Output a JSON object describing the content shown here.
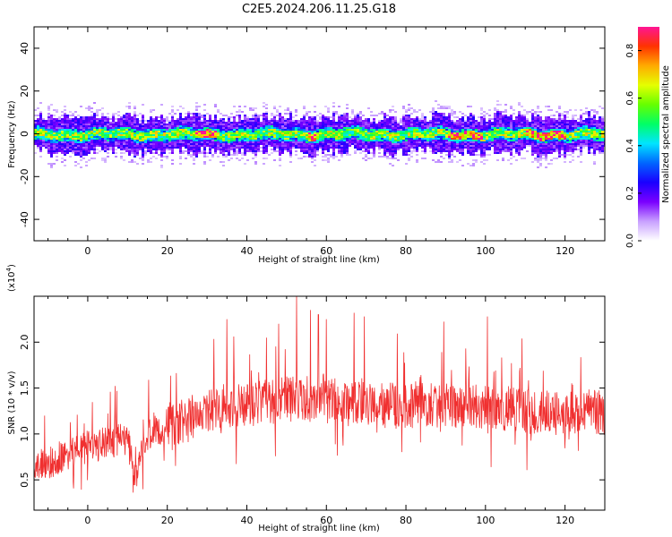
{
  "figure": {
    "title": "C2E5.2024.206.11.25.G18"
  },
  "chart_data": [
    {
      "type": "heatmap",
      "xlabel": "Height of straight line (km)",
      "ylabel": "Frequency (Hz)",
      "xlim": [
        -13.5,
        130
      ],
      "ylim": [
        -50,
        50
      ],
      "x_ticks": [
        0,
        20,
        40,
        60,
        80,
        100,
        120
      ],
      "y_ticks": [
        -40,
        -20,
        0,
        20,
        40
      ],
      "colorbar": {
        "label": "Normalized spectral amplitude",
        "range": [
          0,
          0.9
        ],
        "ticks": [
          0.0,
          0.2,
          0.4,
          0.6,
          0.8
        ],
        "colormap": [
          "#ffffff",
          "#c8a0ff",
          "#7a00ff",
          "#1a00ff",
          "#0066ff",
          "#00e5ff",
          "#00ff66",
          "#66ff00",
          "#e5ff00",
          "#ffaa00",
          "#ff3300",
          "#ff1493"
        ]
      },
      "band": {
        "center_hz": 0,
        "core_half_width_hz": 3,
        "halo_half_width_hz": 8,
        "peak_amplitude_segments_km": [
          [
            27,
            32
          ],
          [
            55,
            57
          ],
          [
            90,
            99
          ],
          [
            110,
            120
          ]
        ]
      }
    },
    {
      "type": "line",
      "xlabel": "Height of straight line (km)",
      "ylabel": "SNR (10 * v/v)",
      "y_scale_note": "(x10",
      "y_scale_exp": "4",
      "xlim": [
        -13.5,
        130
      ],
      "ylim": [
        0.17,
        2.5
      ],
      "x_ticks": [
        0,
        20,
        40,
        60,
        80,
        100,
        120
      ],
      "y_ticks": [
        0.5,
        1.0,
        1.5,
        2.0
      ],
      "color": "#f03030",
      "trend": [
        {
          "x": -13.5,
          "y": 0.62
        },
        {
          "x": -5,
          "y": 0.78
        },
        {
          "x": 0,
          "y": 0.86
        },
        {
          "x": 10,
          "y": 0.95
        },
        {
          "x": 12,
          "y": 0.5
        },
        {
          "x": 14,
          "y": 0.95
        },
        {
          "x": 20,
          "y": 1.1
        },
        {
          "x": 30,
          "y": 1.23
        },
        {
          "x": 40,
          "y": 1.32
        },
        {
          "x": 50,
          "y": 1.38
        },
        {
          "x": 60,
          "y": 1.38
        },
        {
          "x": 70,
          "y": 1.33
        },
        {
          "x": 80,
          "y": 1.3
        },
        {
          "x": 90,
          "y": 1.32
        },
        {
          "x": 100,
          "y": 1.3
        },
        {
          "x": 110,
          "y": 1.25
        },
        {
          "x": 120,
          "y": 1.22
        },
        {
          "x": 130,
          "y": 1.25
        }
      ],
      "peaks": [
        {
          "x": 52.5,
          "y": 2.5
        },
        {
          "x": 56,
          "y": 2.35
        },
        {
          "x": 58,
          "y": 2.3
        },
        {
          "x": 67,
          "y": 2.32
        },
        {
          "x": 69.5,
          "y": 2.28
        },
        {
          "x": 100.5,
          "y": 2.28
        },
        {
          "x": 35,
          "y": 2.25
        },
        {
          "x": 48,
          "y": 2.2
        },
        {
          "x": 60,
          "y": 2.25
        }
      ]
    }
  ]
}
